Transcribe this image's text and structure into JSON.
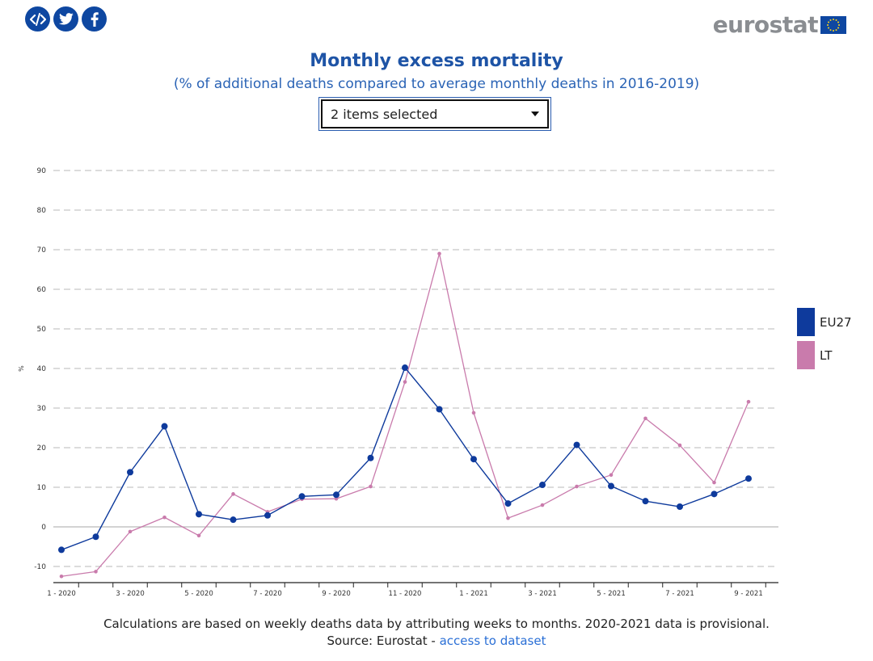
{
  "social": {
    "icons": [
      "embed-icon",
      "twitter-icon",
      "facebook-icon"
    ]
  },
  "logo": {
    "text": "eurostat"
  },
  "selector": {
    "value": "2 items selected"
  },
  "chart_data": {
    "type": "line",
    "title": "Monthly excess mortality",
    "subtitle": "(% of additional deaths compared to average monthly deaths in 2016-2019)",
    "ylabel": "%",
    "xlabel": "",
    "ylim": [
      -12,
      90
    ],
    "yticks": [
      -10,
      0,
      10,
      20,
      30,
      40,
      50,
      60,
      70,
      80,
      90
    ],
    "grid": true,
    "grid_style": "dashed",
    "legend_position": "right",
    "categories": [
      "1 - 2020",
      "2 - 2020",
      "3 - 2020",
      "4 - 2020",
      "5 - 2020",
      "6 - 2020",
      "7 - 2020",
      "8 - 2020",
      "9 - 2020",
      "10 - 2020",
      "11 - 2020",
      "12 - 2020",
      "1 - 2021",
      "2 - 2021",
      "3 - 2021",
      "4 - 2021",
      "5 - 2021",
      "6 - 2021",
      "7 - 2021",
      "8 - 2021",
      "9 - 2021"
    ],
    "xtick_labels": [
      "1 - 2020",
      "",
      "3 - 2020",
      "",
      "5 - 2020",
      "",
      "7 - 2020",
      "",
      "9 - 2020",
      "",
      "11 - 2020",
      "",
      "1 - 2021",
      "",
      "3 - 2021",
      "",
      "5 - 2021",
      "",
      "7 - 2021",
      "",
      "9 - 2021"
    ],
    "series": [
      {
        "name": "EU27",
        "color": "#0e3a9c",
        "values": [
          -5.8,
          -2.5,
          13.8,
          25.4,
          3.2,
          1.8,
          2.9,
          7.7,
          8.1,
          17.4,
          40.2,
          29.7,
          17.1,
          5.9,
          10.6,
          20.7,
          10.3,
          6.5,
          5.1,
          8.3,
          12.2
        ]
      },
      {
        "name": "LT",
        "color": "#c97bac",
        "values": [
          -12.5,
          -11.3,
          -1.2,
          2.4,
          -2.2,
          8.3,
          3.8,
          7.0,
          7.1,
          10.2,
          36.6,
          69.0,
          28.8,
          2.2,
          5.5,
          10.2,
          13.1,
          27.4,
          20.6,
          11.2,
          31.6
        ]
      }
    ]
  },
  "footnote": {
    "line1": "Calculations are based on weekly deaths data by attributing weeks to months. 2020-2021 data is provisional.",
    "source_prefix": "Source: Eurostat - ",
    "source_link": "access to dataset"
  }
}
